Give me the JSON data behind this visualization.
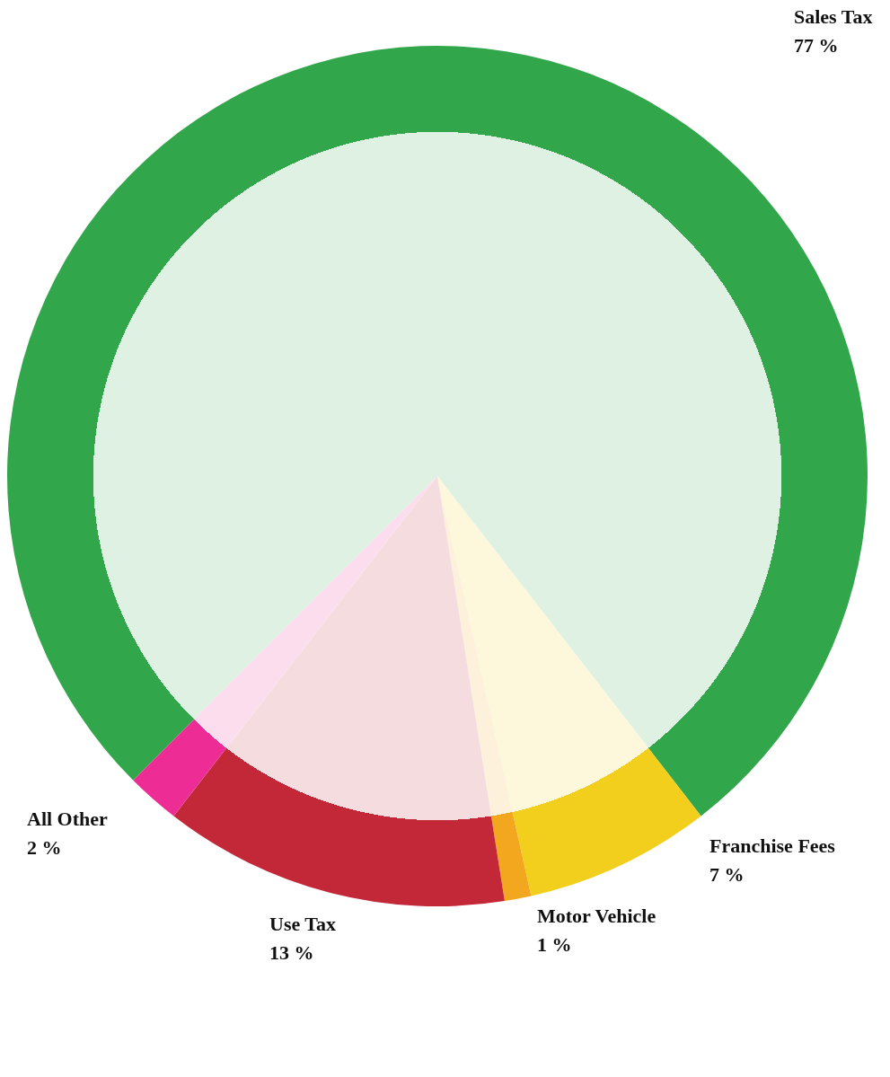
{
  "chart_data": {
    "type": "pie",
    "categories": [
      "Sales Tax",
      "Franchise Fees",
      "Motor Vehicle",
      "Use Tax",
      "All Other"
    ],
    "values": [
      77,
      7,
      1,
      13,
      2
    ],
    "value_labels": [
      "77 %",
      "7 %",
      "1 %",
      "13 %",
      "2 %"
    ],
    "colors": [
      "#31a64a",
      "#f2cf1d",
      "#f2a71e",
      "#c22838",
      "#ed2d95"
    ],
    "legend": false
  }
}
